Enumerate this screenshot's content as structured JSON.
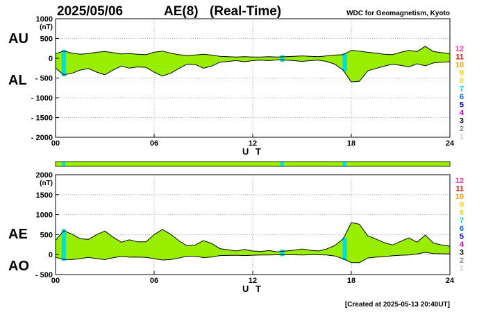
{
  "header": {
    "date": "2025/05/06",
    "index": "AE(8)",
    "mode": "(Real-Time)",
    "source": "WDC for Geomagnetism, Kyoto",
    "created": "[Created at 2025-05-13 20:40UT]"
  },
  "colors": {
    "fill": "#99ee00",
    "gap": "#00dddd",
    "line": "#000000",
    "grid": "#999999"
  },
  "station_legend": [
    {
      "label": "12",
      "color": "#ff3399"
    },
    {
      "label": "11",
      "color": "#ee0000"
    },
    {
      "label": "10",
      "color": "#ff9900"
    },
    {
      "label": "9",
      "color": "#ffcc00"
    },
    {
      "label": "8",
      "color": "#dddd33"
    },
    {
      "label": "7",
      "color": "#00cccc"
    },
    {
      "label": "6",
      "color": "#0066ff"
    },
    {
      "label": "5",
      "color": "#0000cc"
    },
    {
      "label": "4",
      "color": "#cc00cc"
    },
    {
      "label": "3",
      "color": "#000000"
    },
    {
      "label": "2",
      "color": "#888888"
    },
    {
      "label": "1",
      "color": "#cccccc"
    }
  ],
  "chart_data": [
    {
      "type": "area",
      "title": "",
      "unit_label": "(nT)",
      "xlabel": "U T",
      "ylim": [
        -2000,
        1000
      ],
      "y_ticks": [
        1000,
        500,
        0,
        -500,
        -1000,
        -1500,
        -2000
      ],
      "y_tick_labels": [
        "1000",
        "500",
        "0",
        "- 500",
        "- 1000",
        "- 1500",
        "- 2000"
      ],
      "x_ticks": [
        0,
        6,
        12,
        18,
        24
      ],
      "x_tick_labels": [
        "00",
        "06",
        "12",
        "18",
        "24"
      ],
      "grid": true,
      "upper_label": "AU",
      "lower_label": "AL",
      "gap_hours": [
        0.5,
        13.8,
        17.6
      ],
      "x": [
        0,
        0.5,
        1,
        1.5,
        2,
        2.5,
        3,
        3.5,
        4,
        4.5,
        5,
        5.5,
        6,
        6.5,
        7,
        7.5,
        8,
        8.5,
        9,
        9.5,
        10,
        10.5,
        11,
        11.5,
        12,
        12.5,
        13,
        13.5,
        14,
        14.5,
        15,
        15.5,
        16,
        16.5,
        17,
        17.5,
        18,
        18.5,
        19,
        19.5,
        20,
        20.5,
        21,
        21.5,
        22,
        22.5,
        23,
        23.5,
        24
      ],
      "series": [
        {
          "name": "AU",
          "values": [
            110,
            180,
            130,
            100,
            120,
            150,
            170,
            140,
            110,
            120,
            100,
            90,
            150,
            180,
            130,
            90,
            70,
            80,
            100,
            80,
            50,
            40,
            30,
            40,
            30,
            30,
            40,
            30,
            40,
            50,
            60,
            50,
            40,
            60,
            80,
            90,
            200,
            180,
            150,
            130,
            100,
            90,
            150,
            200,
            170,
            300,
            170,
            140,
            120
          ]
        },
        {
          "name": "AL",
          "values": [
            -250,
            -420,
            -380,
            -300,
            -260,
            -350,
            -420,
            -300,
            -200,
            -250,
            -220,
            -230,
            -350,
            -450,
            -380,
            -260,
            -150,
            -160,
            -250,
            -200,
            -100,
            -80,
            -60,
            -90,
            -60,
            -50,
            -60,
            -40,
            -50,
            -60,
            -80,
            -60,
            -50,
            -80,
            -150,
            -300,
            -600,
            -580,
            -320,
            -260,
            -200,
            -150,
            -180,
            -220,
            -140,
            -190,
            -120,
            -100,
            -90
          ]
        }
      ]
    },
    {
      "type": "area",
      "title": "",
      "unit_label": "(nT)",
      "xlabel": "U T",
      "ylim": [
        -500,
        2000
      ],
      "y_ticks": [
        2000,
        1500,
        1000,
        500,
        0,
        -500
      ],
      "y_tick_labels": [
        "2000",
        "1500",
        "1000",
        "500",
        "0",
        "- 500"
      ],
      "x_ticks": [
        0,
        6,
        12,
        18,
        24
      ],
      "x_tick_labels": [
        "00",
        "06",
        "12",
        "18",
        "24"
      ],
      "grid": true,
      "upper_label": "AE",
      "lower_label": "AO",
      "gap_hours": [
        0.5,
        13.8,
        17.6
      ],
      "x": [
        0,
        0.5,
        1,
        1.5,
        2,
        2.5,
        3,
        3.5,
        4,
        4.5,
        5,
        5.5,
        6,
        6.5,
        7,
        7.5,
        8,
        8.5,
        9,
        9.5,
        10,
        10.5,
        11,
        11.5,
        12,
        12.5,
        13,
        13.5,
        14,
        14.5,
        15,
        15.5,
        16,
        16.5,
        17,
        17.5,
        18,
        18.5,
        19,
        19.5,
        20,
        20.5,
        21,
        21.5,
        22,
        22.5,
        23,
        23.5,
        24
      ],
      "series": [
        {
          "name": "AE",
          "values": [
            360,
            600,
            510,
            400,
            380,
            500,
            590,
            440,
            310,
            370,
            320,
            320,
            500,
            630,
            510,
            350,
            220,
            240,
            350,
            280,
            150,
            120,
            90,
            130,
            90,
            80,
            100,
            70,
            90,
            110,
            140,
            110,
            90,
            140,
            230,
            390,
            800,
            760,
            470,
            390,
            300,
            240,
            330,
            420,
            310,
            490,
            290,
            240,
            210
          ]
        },
        {
          "name": "AO",
          "values": [
            -70,
            -120,
            -125,
            -100,
            -70,
            -100,
            -125,
            -80,
            -45,
            -65,
            -60,
            -70,
            -100,
            -135,
            -125,
            -85,
            -40,
            -40,
            -75,
            -60,
            -25,
            -20,
            -15,
            -25,
            -15,
            -10,
            -10,
            -5,
            -5,
            -5,
            -10,
            -5,
            -5,
            -10,
            -35,
            -105,
            -200,
            -200,
            -85,
            -65,
            -50,
            -30,
            -15,
            -10,
            15,
            55,
            25,
            20,
            15
          ]
        }
      ]
    }
  ]
}
